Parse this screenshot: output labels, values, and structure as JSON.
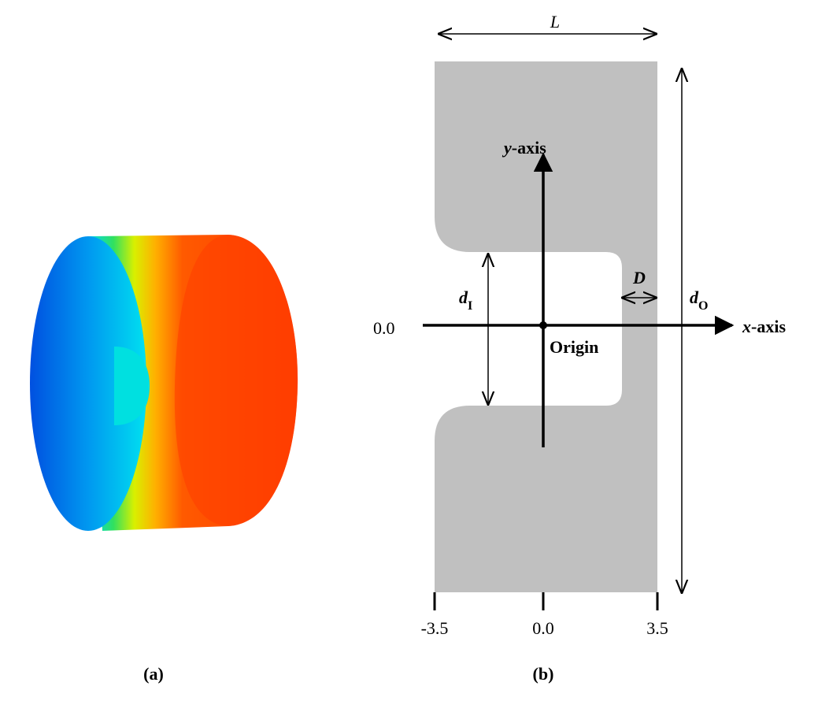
{
  "panels": [
    {
      "label": "(a)"
    },
    {
      "label": "(b)"
    }
  ],
  "diagram": {
    "dimensions": {
      "length": "L",
      "depth": "D",
      "inner_diameter": {
        "symbol": "d",
        "subscript": "I"
      },
      "outer_diameter": {
        "symbol": "d",
        "subscript": "O"
      }
    },
    "axes": {
      "y_axis": {
        "variable": "y",
        "suffix": "-axis"
      },
      "x_axis": {
        "variable": "x",
        "suffix": "-axis"
      },
      "origin": "Origin",
      "y_origin_label": "0.0",
      "x_ticks": [
        "-3.5",
        "0.0",
        "3.5"
      ]
    }
  }
}
